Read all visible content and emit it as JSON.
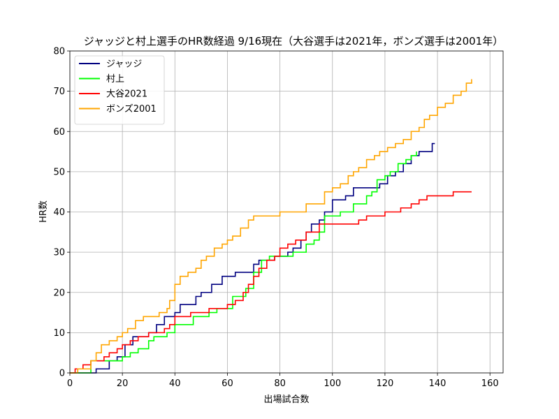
{
  "chart_data": {
    "type": "line",
    "title": "ジャッジと村上選手のHR数経過 9/16現在（大谷選手は2021年，ボンズ選手は2001年）",
    "xlabel": "出場試合数",
    "ylabel": "HR数",
    "xlim": [
      0,
      165
    ],
    "ylim": [
      0,
      80
    ],
    "xticks": [
      0,
      20,
      40,
      60,
      80,
      100,
      120,
      140,
      160
    ],
    "yticks": [
      0,
      10,
      20,
      30,
      40,
      50,
      60,
      70,
      80
    ],
    "grid": true,
    "legend_position": "top-left",
    "series": [
      {
        "name": "ジャッジ",
        "color": "#000080",
        "x": [
          0,
          5,
          10,
          13,
          15,
          18,
          21,
          24,
          28,
          30,
          33,
          36,
          40,
          42,
          45,
          48,
          50,
          54,
          58,
          60,
          63,
          66,
          70,
          72,
          75,
          78,
          80,
          83,
          85,
          88,
          90,
          92,
          95,
          97,
          100,
          105,
          108,
          110,
          113,
          116,
          118,
          121,
          124,
          127,
          130,
          133,
          136,
          138,
          139
        ],
        "values": [
          0,
          0,
          1,
          1,
          3,
          4,
          7,
          9,
          9,
          10,
          12,
          14,
          15,
          17,
          17,
          19,
          20,
          22,
          24,
          24,
          25,
          25,
          27,
          28,
          28,
          29,
          29,
          30,
          31,
          33,
          35,
          37,
          38,
          40,
          43,
          44,
          46,
          46,
          46,
          46,
          47,
          49,
          50,
          52,
          54,
          55,
          55,
          57,
          57
        ]
      },
      {
        "name": "村上",
        "color": "#00ff00",
        "x": [
          0,
          5,
          8,
          10,
          13,
          15,
          18,
          20,
          23,
          26,
          30,
          32,
          35,
          37,
          40,
          43,
          47,
          50,
          53,
          56,
          60,
          62,
          65,
          67,
          70,
          73,
          76,
          80,
          85,
          90,
          93,
          95,
          97,
          100,
          103,
          106,
          108,
          110,
          113,
          115,
          117,
          120,
          122,
          125,
          128,
          130,
          132
        ],
        "values": [
          0,
          0,
          3,
          3,
          3,
          3,
          3,
          4,
          5,
          6,
          8,
          9,
          9,
          10,
          12,
          12,
          14,
          14,
          15,
          16,
          16,
          19,
          19,
          21,
          25,
          28,
          29,
          29,
          30,
          32,
          33,
          35,
          39,
          39,
          40,
          40,
          42,
          42,
          44,
          45,
          48,
          49,
          50,
          52,
          53,
          54,
          55
        ]
      },
      {
        "name": "大谷2021",
        "color": "#ff0000",
        "x": [
          0,
          2,
          5,
          8,
          10,
          13,
          15,
          18,
          20,
          23,
          26,
          30,
          33,
          36,
          38,
          40,
          43,
          46,
          50,
          53,
          56,
          60,
          63,
          66,
          68,
          70,
          72,
          75,
          78,
          80,
          83,
          86,
          90,
          95,
          100,
          105,
          110,
          113,
          116,
          120,
          123,
          126,
          130,
          133,
          136,
          140,
          143,
          146,
          150,
          153
        ],
        "values": [
          0,
          1,
          2,
          3,
          3,
          4,
          5,
          6,
          7,
          8,
          9,
          10,
          10,
          11,
          12,
          14,
          14,
          15,
          15,
          16,
          16,
          17,
          18,
          20,
          22,
          24,
          26,
          28,
          29,
          31,
          32,
          33,
          35,
          37,
          37,
          37,
          38,
          39,
          39,
          40,
          40,
          41,
          42,
          43,
          44,
          44,
          44,
          45,
          45,
          45
        ]
      },
      {
        "name": "ボンズ2001",
        "color": "#ffa500",
        "x": [
          0,
          3,
          6,
          8,
          10,
          12,
          15,
          18,
          20,
          22,
          25,
          28,
          31,
          34,
          37,
          38,
          40,
          42,
          45,
          48,
          50,
          52,
          55,
          58,
          60,
          62,
          65,
          68,
          70,
          75,
          80,
          85,
          90,
          95,
          97,
          100,
          103,
          106,
          108,
          110,
          113,
          116,
          118,
          121,
          124,
          127,
          130,
          133,
          135,
          137,
          140,
          143,
          146,
          149,
          151,
          153
        ],
        "values": [
          0,
          1,
          1,
          3,
          5,
          7,
          8,
          9,
          10,
          11,
          13,
          14,
          14,
          15,
          16,
          18,
          22,
          24,
          25,
          26,
          28,
          29,
          31,
          32,
          33,
          34,
          36,
          38,
          39,
          39,
          40,
          40,
          42,
          42,
          45,
          46,
          47,
          49,
          50,
          51,
          53,
          54,
          55,
          56,
          57,
          58,
          60,
          61,
          63,
          64,
          66,
          67,
          69,
          70,
          72,
          73
        ]
      }
    ]
  }
}
